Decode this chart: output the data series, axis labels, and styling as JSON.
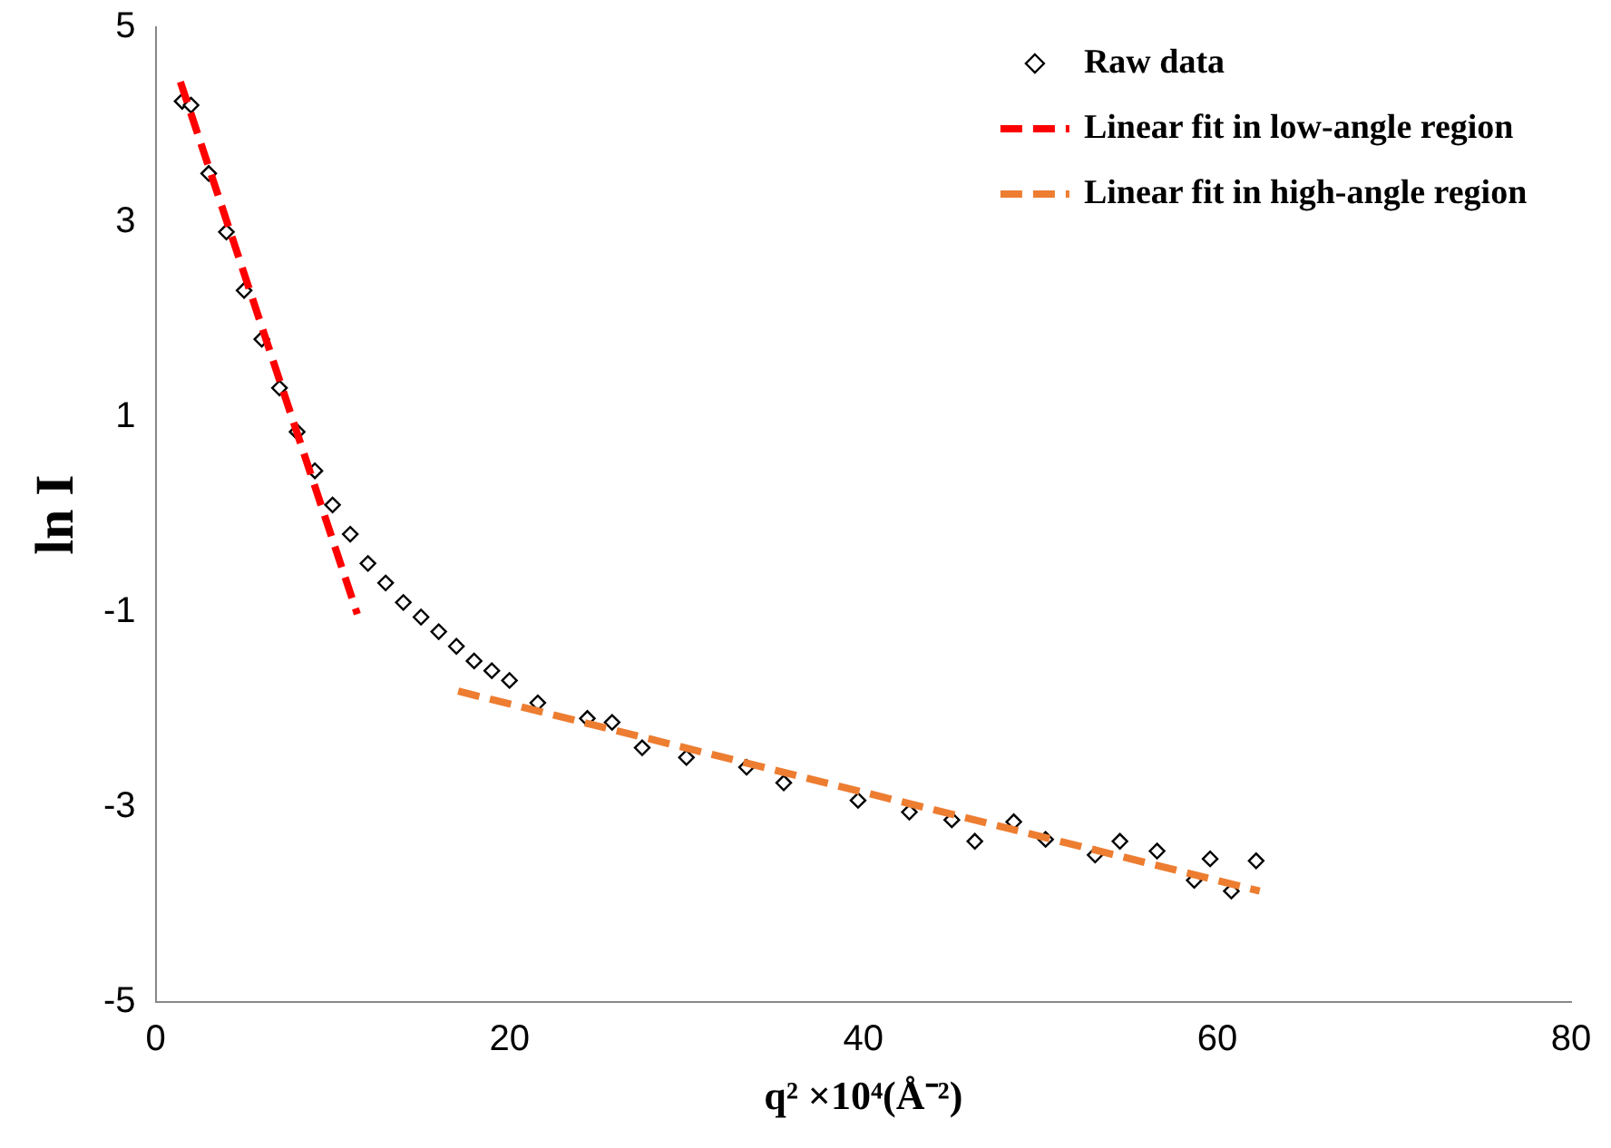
{
  "chart_data": {
    "type": "scatter",
    "xlabel": "q² ×10⁴(Å⁻²)",
    "ylabel": "ln I",
    "xlim": [
      0,
      80
    ],
    "xticks": [
      0,
      20,
      40,
      60,
      80
    ],
    "ylim": [
      -5,
      5
    ],
    "yticks": [
      -5,
      -3,
      -1,
      1,
      3,
      5
    ],
    "grid": false,
    "legend": "top right",
    "marker": "diamond",
    "series": [
      {
        "name": "Raw data",
        "color": "#000000",
        "x": [
          1.5,
          2,
          3,
          4,
          5,
          6,
          7,
          8,
          9,
          10,
          11,
          12,
          13,
          14,
          15,
          16,
          17,
          18,
          19,
          20,
          21.6,
          24.4,
          25.8,
          27.5,
          30,
          33.4,
          35.5,
          39.7,
          42.6,
          45,
          46.3,
          48.5,
          50.3,
          53.1,
          54.5,
          56.6,
          58.7,
          59.6,
          60.8,
          62.2
        ],
        "values": [
          4.24,
          4.2,
          3.5,
          2.9,
          2.3,
          1.8,
          1.3,
          0.85,
          0.45,
          0.1,
          -0.2,
          -0.5,
          -0.7,
          -0.9,
          -1.05,
          -1.2,
          -1.35,
          -1.5,
          -1.6,
          -1.7,
          -1.93,
          -2.09,
          -2.13,
          -2.39,
          -2.49,
          -2.59,
          -2.75,
          -2.93,
          -3.05,
          -3.13,
          -3.35,
          -3.15,
          -3.33,
          -3.49,
          -3.35,
          -3.45,
          -3.75,
          -3.53,
          -3.86,
          -3.55
        ]
      },
      {
        "name": "Linear fit in low-angle region",
        "type": "line",
        "color": "#ff0000",
        "line_style": "dashed",
        "marker": "none",
        "x": [
          1.4,
          11.4
        ],
        "values": [
          4.44,
          -1.02
        ]
      },
      {
        "name": "Linear fit in high-angle region",
        "type": "line",
        "color": "#ed7d31",
        "line_style": "dashed",
        "marker": "none",
        "x": [
          17.1,
          62.4
        ],
        "values": [
          -1.81,
          -3.86
        ]
      }
    ]
  }
}
